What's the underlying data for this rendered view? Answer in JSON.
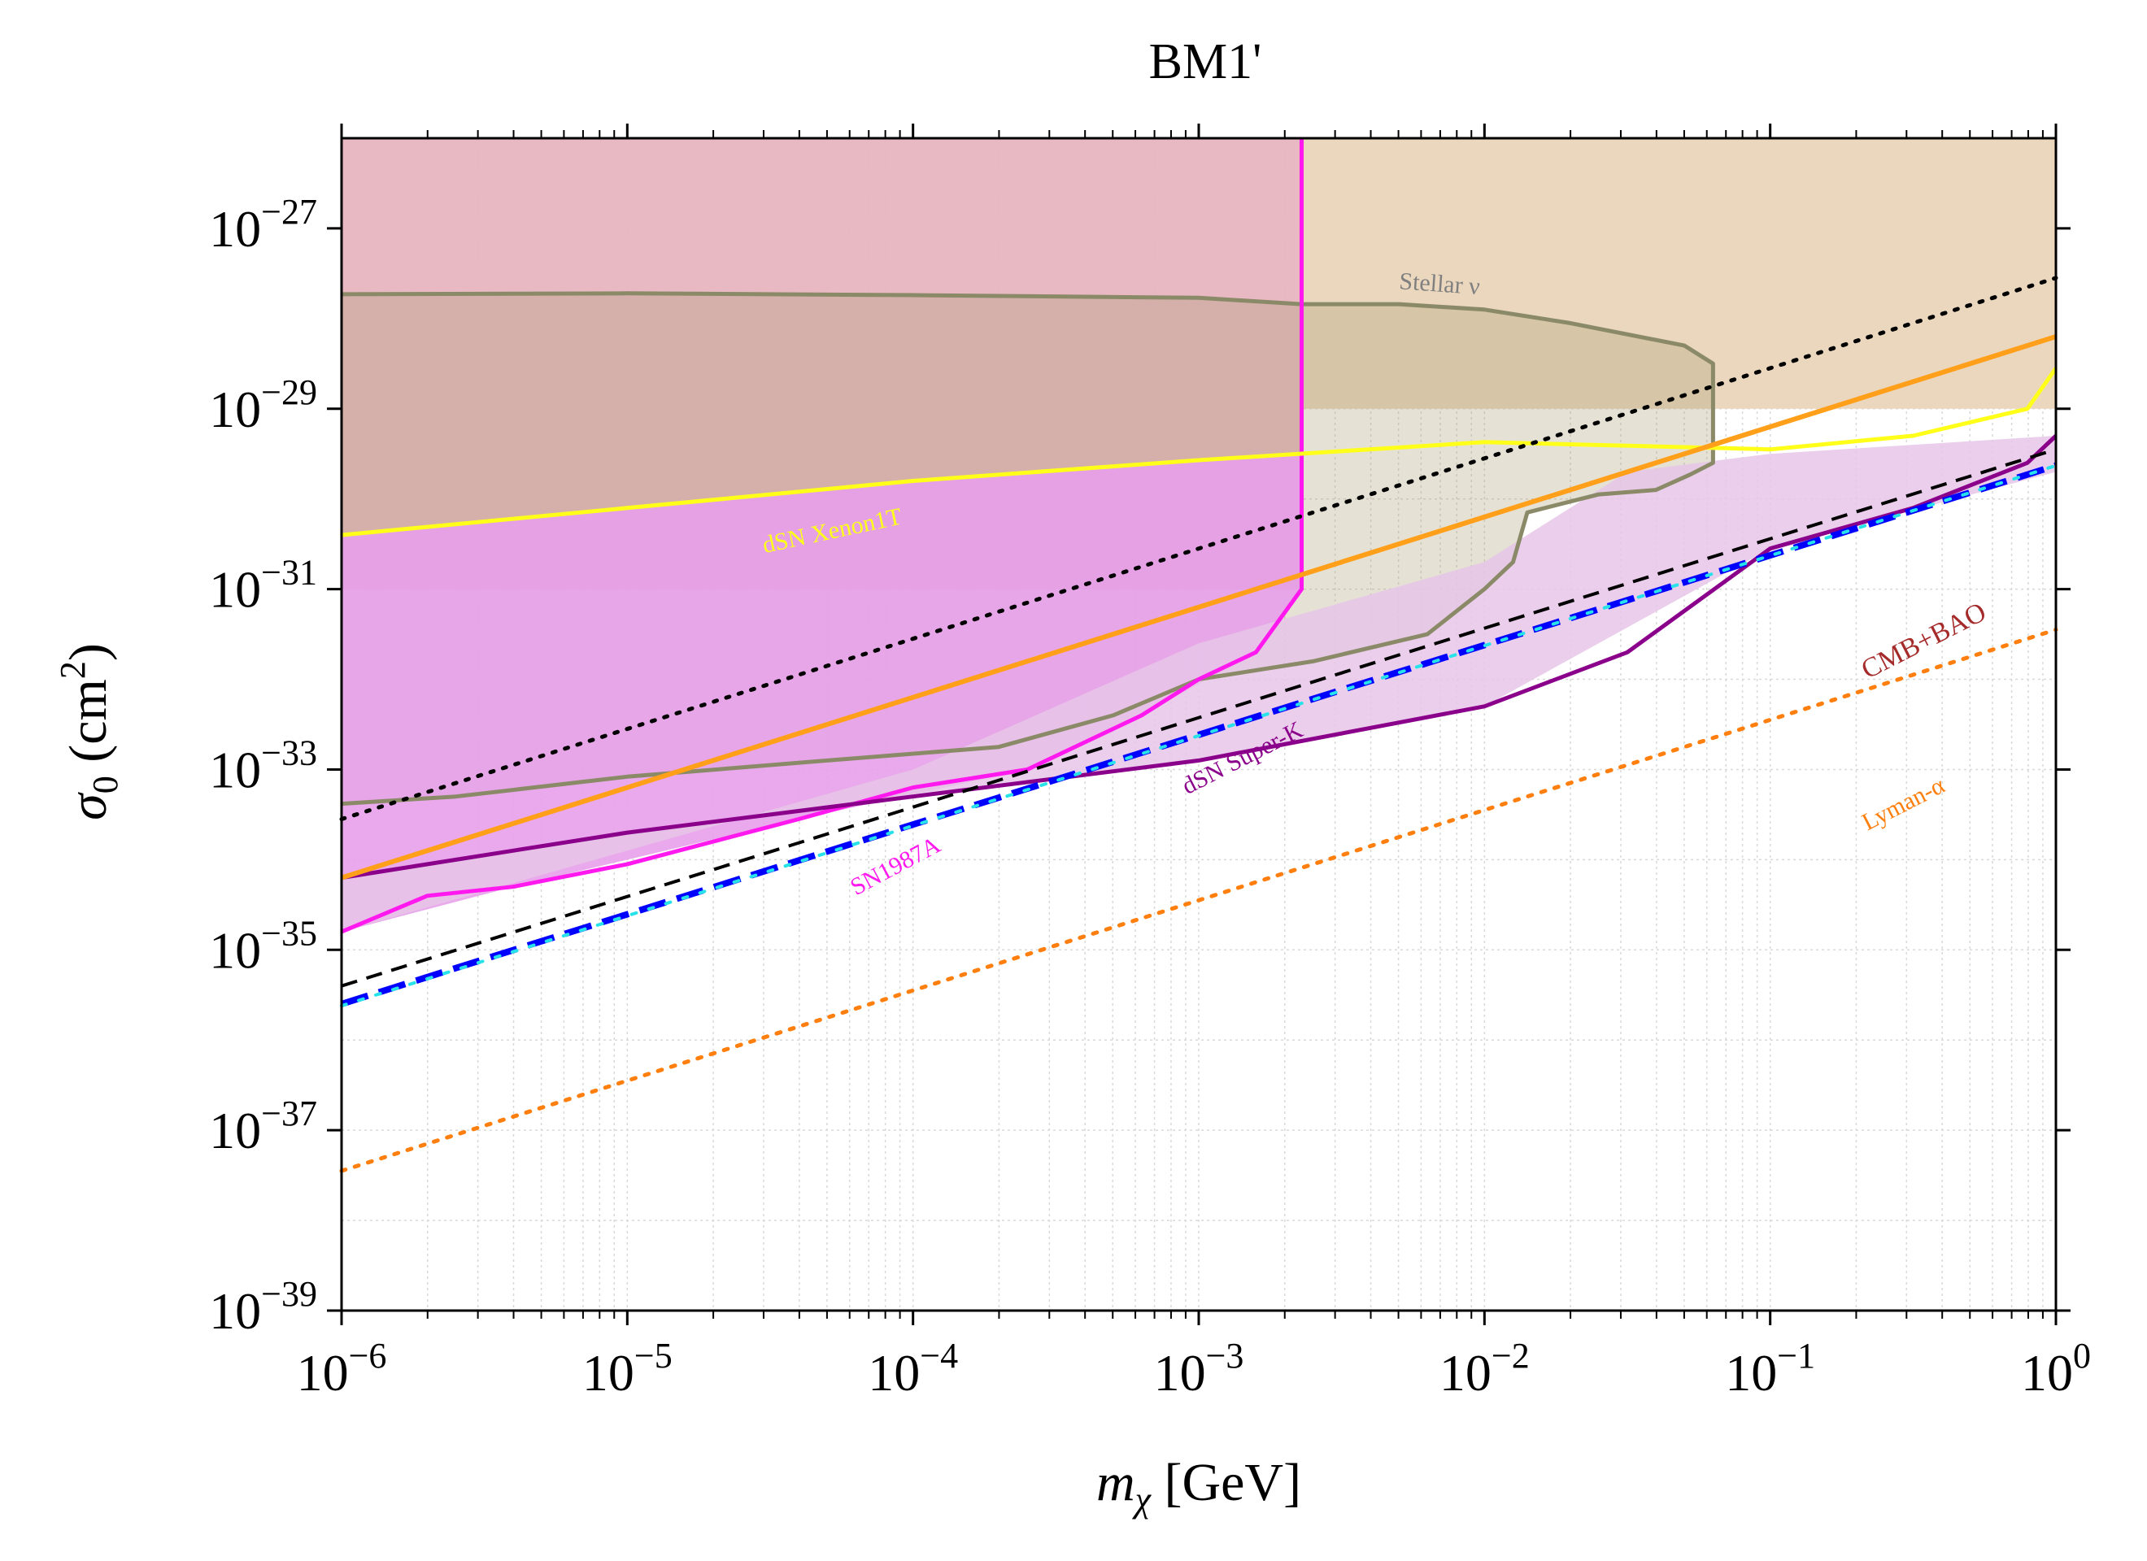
{
  "chart_data": {
    "type": "line",
    "title": "BM1'",
    "xlabel_main": "m",
    "xlabel_sub": "χ",
    "xlabel_unit": " [GeV]",
    "ylabel_main": "σ",
    "ylabel_sub": "0",
    "ylabel_unit": " (cm",
    "ylabel_sup": "2",
    "ylabel_close": ")",
    "x_scale": "log",
    "y_scale": "log",
    "xlim_log10": [
      -6,
      0
    ],
    "ylim_log10": [
      -39,
      -26
    ],
    "x_ticks": [
      {
        "base": "10",
        "exp": "−6",
        "v": -6
      },
      {
        "base": "10",
        "exp": "−5",
        "v": -5
      },
      {
        "base": "10",
        "exp": "−4",
        "v": -4
      },
      {
        "base": "10",
        "exp": "−3",
        "v": -3
      },
      {
        "base": "10",
        "exp": "−2",
        "v": -2
      },
      {
        "base": "10",
        "exp": "−1",
        "v": -1
      },
      {
        "base": "10",
        "exp": "0",
        "v": 0
      }
    ],
    "y_ticks": [
      {
        "base": "10",
        "exp": "−27",
        "v": -27
      },
      {
        "base": "10",
        "exp": "−29",
        "v": -29
      },
      {
        "base": "10",
        "exp": "−31",
        "v": -31
      },
      {
        "base": "10",
        "exp": "−33",
        "v": -33
      },
      {
        "base": "10",
        "exp": "−35",
        "v": -35
      },
      {
        "base": "10",
        "exp": "−37",
        "v": -37
      },
      {
        "base": "10",
        "exp": "−39",
        "v": -39
      }
    ],
    "grid": true,
    "regions": [
      {
        "name": "region-sn1987a-upper",
        "fill": "#e8b5c0",
        "opacity": 0.95,
        "polygon": [
          [
            -6,
            -26
          ],
          [
            -2.64,
            -26
          ],
          [
            -2.64,
            -31
          ],
          [
            -6,
            -31
          ]
        ]
      },
      {
        "name": "region-stellar-upper",
        "fill": "#ead7bd",
        "opacity": 1,
        "polygon": [
          [
            -2.64,
            -26
          ],
          [
            0,
            -26
          ],
          [
            0,
            -29
          ],
          [
            -2.64,
            -29
          ]
        ]
      },
      {
        "name": "region-stellar-nu",
        "fill": "#a89a70",
        "opacity": 0.3,
        "polygon": [
          [
            -6,
            -27.73
          ],
          [
            -5,
            -27.72
          ],
          [
            -4,
            -27.74
          ],
          [
            -3,
            -27.77
          ],
          [
            -2.64,
            -27.84
          ],
          [
            -2.3,
            -27.84
          ],
          [
            -2,
            -27.9
          ],
          [
            -1.7,
            -28.05
          ],
          [
            -1.3,
            -28.3
          ],
          [
            -1.2,
            -28.5
          ],
          [
            -1.2,
            -29.6
          ],
          [
            -1.28,
            -29.73
          ],
          [
            -1.4,
            -29.9
          ],
          [
            -1.6,
            -29.95
          ],
          [
            -1.85,
            -30.15
          ],
          [
            -1.9,
            -30.7
          ],
          [
            -2.0,
            -31.0
          ],
          [
            -2.2,
            -31.5
          ],
          [
            -2.6,
            -31.8
          ],
          [
            -3.0,
            -32.0
          ],
          [
            -3.3,
            -32.4
          ],
          [
            -3.7,
            -32.75
          ],
          [
            -4.3,
            -32.9
          ],
          [
            -5,
            -33.08
          ],
          [
            -5.6,
            -33.3
          ],
          [
            -6,
            -33.38
          ]
        ]
      },
      {
        "name": "region-sn1987a-pink",
        "fill": "#e7a0ea",
        "opacity": 0.9,
        "polygon": [
          [
            -6,
            -30.4
          ],
          [
            -5,
            -30.1
          ],
          [
            -4,
            -29.8
          ],
          [
            -3,
            -29.57
          ],
          [
            -2.64,
            -29.52
          ],
          [
            -2.64,
            -31
          ],
          [
            -2.8,
            -31.7
          ],
          [
            -3.2,
            -32.4
          ],
          [
            -3.6,
            -33.0
          ],
          [
            -4.4,
            -33.55
          ],
          [
            -5.4,
            -34.3
          ],
          [
            -6,
            -34.8
          ]
        ]
      },
      {
        "name": "region-superk-light",
        "fill": "#e6c6e8",
        "opacity": 0.85,
        "polygon": [
          [
            -6,
            -34.2
          ],
          [
            -5,
            -33.7
          ],
          [
            -4,
            -33.3
          ],
          [
            -3,
            -32.9
          ],
          [
            -2,
            -32.3
          ],
          [
            -1,
            -30.55
          ],
          [
            0,
            -29.7
          ],
          [
            0,
            -29.3
          ],
          [
            -1,
            -29.5
          ],
          [
            -1.5,
            -29.7
          ],
          [
            -2,
            -30.7
          ],
          [
            -3,
            -31.6
          ],
          [
            -4,
            -33.0
          ],
          [
            -5,
            -33.9
          ],
          [
            -6,
            -34.8
          ]
        ]
      }
    ],
    "series": [
      {
        "name": "Stellar ν",
        "color": "#8b8a68",
        "width": 5,
        "dash": "",
        "points": [
          [
            -6,
            -27.73
          ],
          [
            -5,
            -27.72
          ],
          [
            -4,
            -27.74
          ],
          [
            -3,
            -27.77
          ],
          [
            -2.64,
            -27.84
          ],
          [
            -2.3,
            -27.84
          ],
          [
            -2,
            -27.9
          ],
          [
            -1.7,
            -28.05
          ],
          [
            -1.3,
            -28.3
          ],
          [
            -1.2,
            -28.5
          ],
          [
            -1.2,
            -29.6
          ],
          [
            -1.28,
            -29.73
          ],
          [
            -1.4,
            -29.9
          ],
          [
            -1.6,
            -29.95
          ],
          [
            -1.85,
            -30.15
          ],
          [
            -1.9,
            -30.7
          ],
          [
            -2.0,
            -31.0
          ],
          [
            -2.2,
            -31.5
          ],
          [
            -2.6,
            -31.8
          ],
          [
            -3.0,
            -32.0
          ],
          [
            -3.3,
            -32.4
          ],
          [
            -3.7,
            -32.75
          ],
          [
            -4.3,
            -32.9
          ],
          [
            -5,
            -33.08
          ],
          [
            -5.6,
            -33.3
          ],
          [
            -6,
            -33.38
          ]
        ]
      },
      {
        "name": "SN1987A",
        "color": "#ff19ee",
        "width": 5,
        "dash": "",
        "points": [
          [
            -6,
            -34.8
          ],
          [
            -5.7,
            -34.4
          ],
          [
            -5.4,
            -34.3
          ],
          [
            -5,
            -34.05
          ],
          [
            -4.4,
            -33.55
          ],
          [
            -4,
            -33.2
          ],
          [
            -3.6,
            -33.0
          ],
          [
            -3.2,
            -32.4
          ],
          [
            -3.0,
            -32.0
          ],
          [
            -2.8,
            -31.7
          ],
          [
            -2.64,
            -31
          ],
          [
            -2.64,
            -26
          ]
        ]
      },
      {
        "name": "dSN Xenon1T",
        "color": "#ffff1a",
        "width": 5,
        "dash": "",
        "points": [
          [
            -6,
            -30.4
          ],
          [
            -5,
            -30.1
          ],
          [
            -4,
            -29.8
          ],
          [
            -3,
            -29.57
          ],
          [
            -2,
            -29.37
          ],
          [
            -1,
            -29.45
          ],
          [
            -0.5,
            -29.3
          ],
          [
            -0.1,
            -29.0
          ],
          [
            0,
            -28.55
          ]
        ]
      },
      {
        "name": "dSN Super-K",
        "color": "#8b008b",
        "width": 5,
        "dash": "",
        "points": [
          [
            -6,
            -34.2
          ],
          [
            -5,
            -33.7
          ],
          [
            -4,
            -33.3
          ],
          [
            -3,
            -32.9
          ],
          [
            -2,
            -32.3
          ],
          [
            -1.5,
            -31.7
          ],
          [
            -1,
            -30.55
          ],
          [
            -0.5,
            -30.1
          ],
          [
            -0.1,
            -29.6
          ],
          [
            0,
            -29.3
          ]
        ]
      },
      {
        "name": "orange-line",
        "color": "#ff9f1a",
        "width": 6,
        "dash": "",
        "points": [
          [
            -6,
            -34.2
          ],
          [
            0,
            -28.2
          ]
        ]
      },
      {
        "name": "black-dotted",
        "color": "#000000",
        "width": 5,
        "dash": "4 12",
        "points": [
          [
            -6,
            -33.55
          ],
          [
            0,
            -27.55
          ]
        ]
      },
      {
        "name": "black-dashed",
        "color": "#000000",
        "width": 4,
        "dash": "20 12",
        "points": [
          [
            -6,
            -35.4
          ],
          [
            0,
            -29.45
          ]
        ]
      },
      {
        "name": "CMB+BAO",
        "color": "#0000ff",
        "width": 8,
        "dash": "34 14",
        "points": [
          [
            -6,
            -35.6
          ],
          [
            0,
            -29.63
          ]
        ]
      },
      {
        "name": "cyan-dotted",
        "color": "#28e2ea",
        "width": 4,
        "dash": "6 16",
        "points": [
          [
            -6,
            -35.62
          ],
          [
            0,
            -29.63
          ]
        ]
      },
      {
        "name": "Lyman-α",
        "color": "#ff7f0e",
        "width": 5,
        "dash": "5 12",
        "points": [
          [
            -6,
            -37.45
          ],
          [
            0,
            -31.45
          ]
        ]
      }
    ],
    "annotations": [
      {
        "text": "Stellar ν",
        "x": -2.3,
        "y": -27.67,
        "color": "#808080",
        "size": 30,
        "rotate": 4
      },
      {
        "text": "dSN Xenon1T",
        "x": -4.52,
        "y": -30.6,
        "color": "#ffff1a",
        "size": 30,
        "rotate": -12
      },
      {
        "text": "SN1987A",
        "x": -4.2,
        "y": -34.4,
        "color": "#ff19ee",
        "size": 30,
        "rotate": -28
      },
      {
        "text": "dSN Super-K",
        "x": -3.04,
        "y": -33.28,
        "color": "#8b008b",
        "size": 30,
        "rotate": -27
      },
      {
        "text": "CMB+BAO",
        "x": -0.66,
        "y": -32.0,
        "color": "#a52a2a",
        "size": 34,
        "rotate": -27
      },
      {
        "text": "Lyman-α",
        "x": -0.66,
        "y": -33.68,
        "color": "#ff7f0e",
        "size": 30,
        "rotate": -27
      }
    ]
  }
}
